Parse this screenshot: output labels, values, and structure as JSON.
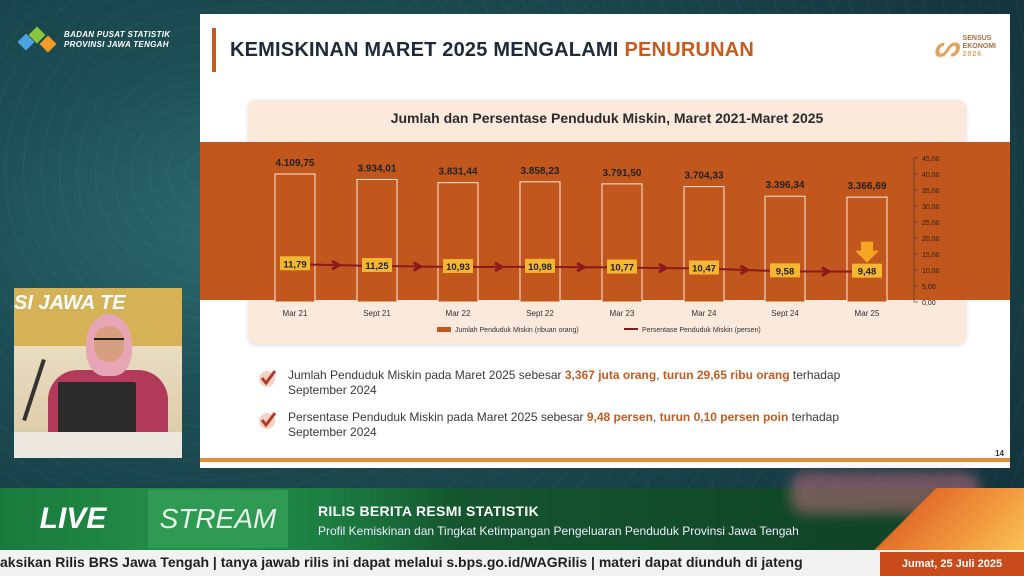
{
  "logo": {
    "line1": "BADAN PUSAT STATISTIK",
    "line2": "PROVINSI JAWA TENGAH"
  },
  "slide": {
    "title_main": "KEMISKINAN MARET 2025 MENGALAMI",
    "title_highlight": "PENURUNAN",
    "sensus_line1": "SENSUS",
    "sensus_line2": "EKONOMI",
    "sensus_year": "2026",
    "page_number": "14",
    "bullets": [
      {
        "pre": "Jumlah Penduduk Miskin pada Maret 2025 sebesar ",
        "b1": "3,367 juta orang",
        "mid": ", ",
        "b2": "turun 29,65 ribu orang",
        "post": " terhadap",
        "line2": "September 2024"
      },
      {
        "pre": "Persentase Penduduk Miskin pada Maret 2025 sebesar ",
        "b1": "9,48 persen",
        "mid": ", ",
        "b2": "turun 0,10 persen poin",
        "post": " terhadap",
        "line2": "September 2024"
      }
    ]
  },
  "chart_data": {
    "type": "bar",
    "title": "Jumlah dan Persentase Penduduk Miskin, Maret 2021-Maret 2025",
    "categories": [
      "Mar 21",
      "Sept 21",
      "Mar 22",
      "Sept 22",
      "Mar 23",
      "Mar 24",
      "Sept 24",
      "Mar 25"
    ],
    "series": [
      {
        "name": "Jumlah Penduduk Miskin (ribuan orang)",
        "type": "bar",
        "values": [
          4109.75,
          3934.01,
          3831.44,
          3858.23,
          3791.5,
          3704.33,
          3396.34,
          3366.69
        ],
        "labels": [
          "4.109,75",
          "3.934,01",
          "3.831,44",
          "3.858,23",
          "3.791,50",
          "3.704,33",
          "3.396,34",
          "3.366,69"
        ],
        "color": "#c2571e"
      },
      {
        "name": "Persentase Penduduk Miskin (persen)",
        "type": "line",
        "values": [
          11.79,
          11.25,
          10.93,
          10.98,
          10.77,
          10.47,
          9.58,
          9.48
        ],
        "labels": [
          "11,79",
          "11,25",
          "10,93",
          "10,98",
          "10,77",
          "10,47",
          "9,58",
          "9,48"
        ],
        "color": "#8b1a1a"
      }
    ],
    "y2_ticks": [
      "45,00",
      "40,00",
      "35,00",
      "30,00",
      "25,00",
      "20,00",
      "15,00",
      "10,00",
      "5,00",
      "0,00"
    ],
    "y2lim": [
      0,
      45
    ],
    "legend_position": "bottom"
  },
  "camera": {
    "wall_text": "SI JAWA TE"
  },
  "banner": {
    "live": "LIVE",
    "stream": "STREAM",
    "title": "RILIS BERITA RESMI STATISTIK",
    "subtitle": "Profil Kemiskinan dan Tingkat Ketimpangan Pengeluaran Penduduk Provinsi Jawa Tengah",
    "ticker": "aksikan Rilis BRS Jawa Tengah   |   tanya jawab rilis ini dapat melalui s.bps.go.id/WAGRilis  |  materi dapat diunduh di jateng",
    "date": "Jumat, 25 Juli 2025"
  },
  "colors": {
    "accent": "#c75a1f",
    "band": "#c2571e",
    "label_bg": "#f5b731",
    "line": "#8b1a1a"
  }
}
